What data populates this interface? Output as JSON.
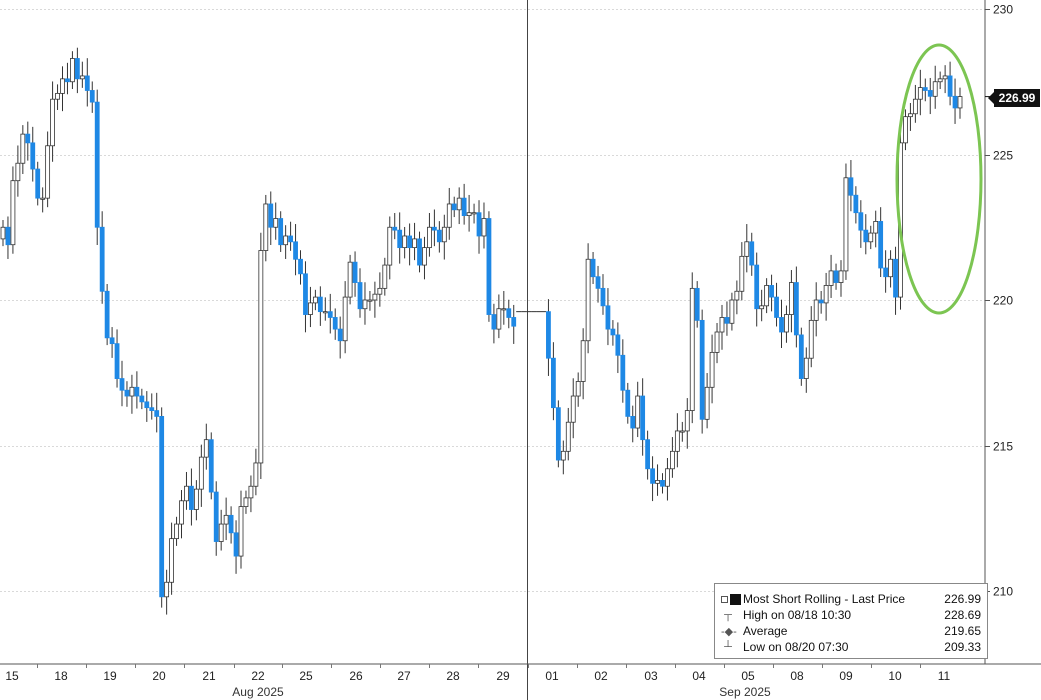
{
  "chart_data": {
    "type": "candlestick",
    "y_axis": {
      "position": "right",
      "ticks": [
        210,
        215,
        220,
        225,
        230
      ],
      "ylim": [
        207.5,
        230.5
      ]
    },
    "x_axis": {
      "day_labels": [
        "15",
        "18",
        "19",
        "20",
        "21",
        "22",
        "25",
        "26",
        "27",
        "28",
        "29",
        "01",
        "02",
        "03",
        "04",
        "05",
        "08",
        "09",
        "10",
        "11"
      ],
      "month_labels": [
        "Aug 2025",
        "Sep 2025"
      ]
    },
    "last_price": "226.99",
    "series": [
      {
        "name": "Most Short Rolling - Last Price",
        "values": [
          222.5,
          221.9,
          224.1,
          224.7,
          225.7,
          225.4,
          224.5,
          223.5,
          223.5,
          225.3,
          226.9,
          227.1,
          227.6,
          227.5,
          228.3,
          227.6,
          227.7,
          227.2,
          226.8,
          222.5,
          220.3,
          218.7,
          218.5,
          217.3,
          216.9,
          216.7,
          217.0,
          216.7,
          216.5,
          216.3,
          216.2,
          216.0,
          209.8,
          210.3,
          211.8,
          212.3,
          213.1,
          213.6,
          212.8,
          213.5,
          214.6,
          215.2,
          213.4,
          211.7,
          212.3,
          212.6,
          212.0,
          211.2,
          212.9,
          213.2,
          213.6,
          214.4,
          221.7,
          223.3,
          222.5,
          222.8,
          221.9,
          222.2,
          222.0,
          221.4,
          220.9,
          219.5,
          219.9,
          220.1,
          219.6,
          219.6,
          219.4,
          219.0,
          218.6,
          220.1,
          221.3,
          220.6,
          219.7,
          220.0,
          220.0,
          220.2,
          220.4,
          221.2,
          222.5,
          222.4,
          221.8,
          222.2,
          221.8,
          222.1,
          221.2,
          221.8,
          222.5,
          222.4,
          222.0,
          222.5,
          223.3,
          223.1,
          223.5,
          222.9,
          223.0,
          223.0,
          222.2,
          222.8,
          219.5,
          219.0,
          219.7,
          219.7,
          219.4,
          219.1,
          219.6,
          219.6,
          219.6,
          219.6,
          219.6,
          219.6,
          218.0,
          216.3,
          214.5,
          214.8,
          215.8,
          216.7,
          217.2,
          218.6,
          221.4,
          220.8,
          220.4,
          219.8,
          219.0,
          218.8,
          218.1,
          216.9,
          216.0,
          215.6,
          216.7,
          215.2,
          214.2,
          213.7,
          213.8,
          213.6,
          214.2,
          214.8,
          215.5,
          215.5,
          216.2,
          220.4,
          219.3,
          215.9,
          217.0,
          218.2,
          218.9,
          219.4,
          219.2,
          220.0,
          220.3,
          221.5,
          222.0,
          221.2,
          219.7,
          219.8,
          220.5,
          220.1,
          219.4,
          218.9,
          219.5,
          220.6,
          218.8,
          217.3,
          218.0,
          219.3,
          220.0,
          219.9,
          220.5,
          221.0,
          220.6,
          221.0,
          224.2,
          223.6,
          223.0,
          222.4,
          222.0,
          222.3,
          222.7,
          221.1,
          220.8,
          221.4,
          220.1,
          225.4,
          226.3,
          226.4,
          226.9,
          227.3,
          227.2,
          227.0,
          227.5,
          227.6,
          227.7,
          227.0,
          226.6,
          226.99
        ]
      }
    ],
    "legend": {
      "main": {
        "label": "Most Short Rolling - Last Price",
        "value": "226.99"
      },
      "rows": [
        {
          "icon": "high-marker-icon",
          "label": "High on 08/18 10:30",
          "value": "228.69"
        },
        {
          "icon": "average-marker-icon",
          "label": "Average",
          "value": "219.65"
        },
        {
          "icon": "low-marker-icon",
          "label": "Low on 08/20 07:30",
          "value": "209.33"
        }
      ]
    },
    "annotation": {
      "type": "ellipse",
      "color": "#7cc552"
    },
    "colors": {
      "up": "#ffffff",
      "down": "#1e88e5",
      "outline": "#333333",
      "wick": "#333333",
      "grid": "#d9d9d9"
    }
  }
}
